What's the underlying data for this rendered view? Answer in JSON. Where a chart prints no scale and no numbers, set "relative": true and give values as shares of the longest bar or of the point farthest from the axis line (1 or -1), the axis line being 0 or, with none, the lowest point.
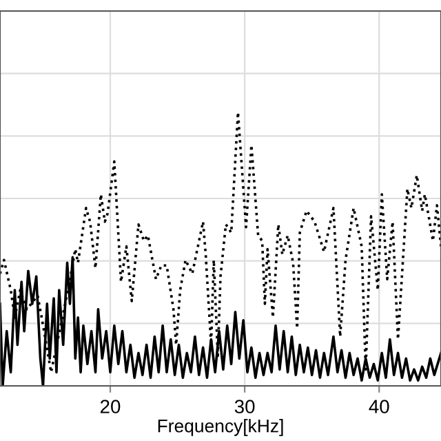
{
  "chart_data": {
    "type": "line",
    "xlabel": "Frequency[kHz]",
    "relative": true,
    "xlim": [
      11.8,
      44.6
    ],
    "xticks": [
      20,
      30,
      40
    ],
    "grid": true,
    "tick_labels": "x",
    "legend": false,
    "series": [
      {
        "color": "#000000",
        "line_style": "dotted",
        "x": [
          11.8,
          12.1,
          12.6,
          12.9,
          13.3,
          13.8,
          14.6,
          14.9,
          15.6,
          16.9,
          17.4,
          17.6,
          18.2,
          18.5,
          18.9,
          19.3,
          19.6,
          19.8,
          20.3,
          20.8,
          21.2,
          21.6,
          22.1,
          22.5,
          22.8,
          23.4,
          23.8,
          24.2,
          24.7,
          24.9,
          25.2,
          25.6,
          26.1,
          26.9,
          27.1,
          27.5,
          27.7,
          28.0,
          28.2,
          28.6,
          29.0,
          29.5,
          30.1,
          30.5,
          31.0,
          31.3,
          31.5,
          31.7,
          32.1,
          32.5,
          32.8,
          33.2,
          33.6,
          33.9,
          34.1,
          34.6,
          35.2,
          35.9,
          36.6,
          37.1,
          37.5,
          38.1,
          38.7,
          39.0,
          39.4,
          39.9,
          40.2,
          40.6,
          41.0,
          41.4,
          42.1,
          42.4,
          42.8,
          43.2,
          43.4,
          44.0,
          44.3,
          44.6
        ],
        "values": [
          0.41,
          0.46,
          0.35,
          0.25,
          0.35,
          0.28,
          0.33,
          0.25,
          0.05,
          0.36,
          0.5,
          0.45,
          0.65,
          0.6,
          0.43,
          0.7,
          0.6,
          0.63,
          0.82,
          0.38,
          0.51,
          0.31,
          0.59,
          0.53,
          0.55,
          0.39,
          0.44,
          0.44,
          0.28,
          0.15,
          0.35,
          0.46,
          0.41,
          0.6,
          0.48,
          0.15,
          0.46,
          0.11,
          0.4,
          0.59,
          0.56,
          1.0,
          0.58,
          0.88,
          0.55,
          0.53,
          0.3,
          0.5,
          0.25,
          0.59,
          0.48,
          0.55,
          0.45,
          0.21,
          0.56,
          0.64,
          0.6,
          0.49,
          0.65,
          0.18,
          0.46,
          0.65,
          0.51,
          0.06,
          0.62,
          0.35,
          0.7,
          0.39,
          0.6,
          0.17,
          0.72,
          0.65,
          0.77,
          0.64,
          0.7,
          0.53,
          0.66,
          0.51
        ]
      },
      {
        "color": "#000000",
        "line_style": "solid",
        "x": [
          11.8,
          12.0,
          12.3,
          12.6,
          12.9,
          13.1,
          13.4,
          13.6,
          13.9,
          14.2,
          14.5,
          14.8,
          15.0,
          15.3,
          15.5,
          15.8,
          16.0,
          16.2,
          16.5,
          16.8,
          17.0,
          17.2,
          17.4,
          17.6,
          17.8,
          18.0,
          18.3,
          18.6,
          18.9,
          19.1,
          19.4,
          19.7,
          20.0,
          20.3,
          20.6,
          20.9,
          21.2,
          21.5,
          21.8,
          22.1,
          22.4,
          22.7,
          23.0,
          23.3,
          23.6,
          23.9,
          24.2,
          24.5,
          24.8,
          25.1,
          25.4,
          25.7,
          26.0,
          26.3,
          26.6,
          26.9,
          27.2,
          27.5,
          27.8,
          28.1,
          28.4,
          28.7,
          29.0,
          29.3,
          29.6,
          29.9,
          30.2,
          30.5,
          30.8,
          31.1,
          31.4,
          31.7,
          32.0,
          32.3,
          32.6,
          32.9,
          33.2,
          33.5,
          33.8,
          34.1,
          34.4,
          34.7,
          35.0,
          35.3,
          35.6,
          35.9,
          36.2,
          36.6,
          36.9,
          37.2,
          37.5,
          37.8,
          38.1,
          38.4,
          38.7,
          39.0,
          39.3,
          39.6,
          39.9,
          40.2,
          40.5,
          40.8,
          41.1,
          41.4,
          41.7,
          42.0,
          42.3,
          42.6,
          42.9,
          43.2,
          43.5,
          43.8,
          44.1,
          44.6
        ],
        "values": [
          0.3,
          0,
          0.2,
          0.05,
          0.35,
          0.15,
          0.38,
          0.2,
          0.42,
          0.3,
          0.4,
          0.1,
          0,
          0.3,
          0.1,
          0.32,
          0.05,
          0.35,
          0.15,
          0.45,
          0.3,
          0.47,
          0.1,
          0.25,
          0.05,
          0.22,
          0.08,
          0.2,
          0.05,
          0.28,
          0.1,
          0.2,
          0.05,
          0.22,
          0.08,
          0.2,
          0.05,
          0.15,
          0.03,
          0.12,
          0.04,
          0.15,
          0.03,
          0.18,
          0.05,
          0.22,
          0.05,
          0.17,
          0.04,
          0.15,
          0.03,
          0.12,
          0.05,
          0.18,
          0.04,
          0.14,
          0.03,
          0.17,
          0.05,
          0.2,
          0.06,
          0.22,
          0.08,
          0.27,
          0.1,
          0.24,
          0.05,
          0.14,
          0.03,
          0.12,
          0.04,
          0.12,
          0.05,
          0.22,
          0.06,
          0.2,
          0.05,
          0.18,
          0.04,
          0.15,
          0.05,
          0.14,
          0.04,
          0.13,
          0.03,
          0.12,
          0.04,
          0.18,
          0.05,
          0.13,
          0.03,
          0.12,
          0.04,
          0.1,
          0.02,
          0.1,
          0.03,
          0.08,
          0.02,
          0.12,
          0.03,
          0.17,
          0.04,
          0.12,
          0.03,
          0.1,
          0.02,
          0.06,
          0.02,
          0.07,
          0.03,
          0.1,
          0.04,
          0.12
        ]
      }
    ]
  }
}
